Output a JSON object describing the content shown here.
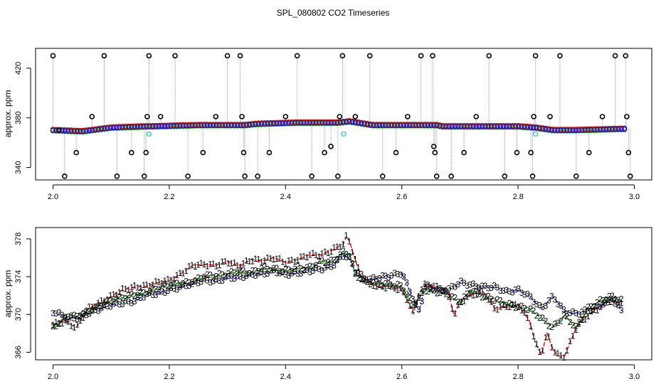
{
  "title": "SPL_080802  CO2 Timeseries",
  "colors": {
    "series1": "#dd0000",
    "series2": "#00aa00",
    "series3": "#0000cc",
    "flag": "#33cccc",
    "raw": "#000000",
    "frame": "#000000"
  },
  "chart_data": [
    {
      "type": "scatter",
      "name": "top-panel",
      "title": "SPL_080802  CO2 Timeseries",
      "xlabel": "",
      "ylabel": "approx. ppm",
      "xlim": [
        1.97,
        3.03
      ],
      "ylim": [
        330,
        436
      ],
      "x_ticks": [
        2.0,
        2.2,
        2.4,
        2.6,
        2.8,
        3.0
      ],
      "x_tick_labels": [
        "2.0",
        "2.2",
        "2.4",
        "2.6",
        "2.8",
        "3.0"
      ],
      "y_ticks": [
        340,
        380,
        420
      ],
      "y_tick_labels": [
        "340",
        "380",
        "420"
      ],
      "grid": false,
      "baseline": [
        [
          2.0,
          370
        ],
        [
          2.05,
          369
        ],
        [
          2.1,
          372
        ],
        [
          2.16,
          373
        ],
        [
          2.17,
          373
        ],
        [
          2.25,
          374
        ],
        [
          2.33,
          374
        ],
        [
          2.35,
          375
        ],
        [
          2.42,
          376
        ],
        [
          2.49,
          376
        ],
        [
          2.51,
          377
        ],
        [
          2.55,
          374
        ],
        [
          2.6,
          374
        ],
        [
          2.66,
          374
        ],
        [
          2.67,
          373
        ],
        [
          2.8,
          373
        ],
        [
          2.83,
          372
        ],
        [
          2.86,
          370
        ],
        [
          2.9,
          370
        ],
        [
          2.98,
          371
        ]
      ],
      "raw_points": [
        [
          2.0,
          430
        ],
        [
          2.01,
          370
        ],
        [
          2.02,
          333
        ],
        [
          2.04,
          352
        ],
        [
          2.067,
          381
        ],
        [
          2.088,
          430
        ],
        [
          2.11,
          333
        ],
        [
          2.135,
          352
        ],
        [
          2.157,
          333
        ],
        [
          2.16,
          352
        ],
        [
          2.162,
          381
        ],
        [
          2.165,
          430
        ],
        [
          2.185,
          381
        ],
        [
          2.21,
          430
        ],
        [
          2.232,
          333
        ],
        [
          2.258,
          352
        ],
        [
          2.28,
          381
        ],
        [
          2.3,
          430
        ],
        [
          2.322,
          430
        ],
        [
          2.325,
          381
        ],
        [
          2.328,
          352
        ],
        [
          2.33,
          333
        ],
        [
          2.352,
          333
        ],
        [
          2.372,
          352
        ],
        [
          2.4,
          381
        ],
        [
          2.42,
          430
        ],
        [
          2.445,
          333
        ],
        [
          2.467,
          352
        ],
        [
          2.478,
          357
        ],
        [
          2.49,
          333
        ],
        [
          2.493,
          381
        ],
        [
          2.498,
          430
        ],
        [
          2.52,
          381
        ],
        [
          2.545,
          430
        ],
        [
          2.567,
          333
        ],
        [
          2.59,
          352
        ],
        [
          2.61,
          381
        ],
        [
          2.633,
          430
        ],
        [
          2.653,
          430
        ],
        [
          2.655,
          357
        ],
        [
          2.657,
          352
        ],
        [
          2.66,
          333
        ],
        [
          2.685,
          333
        ],
        [
          2.707,
          352
        ],
        [
          2.728,
          381
        ],
        [
          2.75,
          430
        ],
        [
          2.777,
          333
        ],
        [
          2.798,
          352
        ],
        [
          2.822,
          352
        ],
        [
          2.825,
          333
        ],
        [
          2.827,
          381
        ],
        [
          2.83,
          430
        ],
        [
          2.855,
          381
        ],
        [
          2.872,
          430
        ],
        [
          2.9,
          333
        ],
        [
          2.922,
          352
        ],
        [
          2.945,
          381
        ],
        [
          2.967,
          430
        ],
        [
          2.985,
          430
        ],
        [
          2.987,
          381
        ],
        [
          2.99,
          352
        ],
        [
          2.993,
          333
        ]
      ],
      "flag_points": [
        [
          2.165,
          367
        ],
        [
          2.5,
          367
        ],
        [
          2.83,
          367
        ]
      ]
    },
    {
      "type": "line",
      "name": "bottom-panel",
      "title": "",
      "xlabel": "",
      "ylabel": "approx. ppm",
      "xlim": [
        1.97,
        3.03
      ],
      "ylim": [
        365.2,
        379.2
      ],
      "x_ticks": [
        2.0,
        2.2,
        2.4,
        2.6,
        2.8,
        3.0
      ],
      "x_tick_labels": [
        "2.0",
        "2.2",
        "2.4",
        "2.6",
        "2.8",
        "3.0"
      ],
      "y_ticks": [
        366,
        370,
        374,
        378
      ],
      "y_tick_labels": [
        "366",
        "370",
        "374",
        "378"
      ],
      "grid": false,
      "series": [
        {
          "name": "1",
          "symbol": "1",
          "points": [
            [
              2.0,
              368.9
            ],
            [
              2.02,
              369.3
            ],
            [
              2.04,
              368.6
            ],
            [
              2.06,
              370.6
            ],
            [
              2.08,
              371.2
            ],
            [
              2.1,
              371.9
            ],
            [
              2.12,
              372.6
            ],
            [
              2.14,
              372.9
            ],
            [
              2.16,
              373.0
            ],
            [
              2.18,
              373.4
            ],
            [
              2.2,
              373.6
            ],
            [
              2.22,
              374.3
            ],
            [
              2.24,
              375.2
            ],
            [
              2.26,
              375.3
            ],
            [
              2.28,
              375.2
            ],
            [
              2.3,
              375.6
            ],
            [
              2.32,
              375.1
            ],
            [
              2.34,
              375.8
            ],
            [
              2.36,
              375.7
            ],
            [
              2.38,
              376.0
            ],
            [
              2.4,
              375.5
            ],
            [
              2.42,
              375.8
            ],
            [
              2.44,
              376.3
            ],
            [
              2.46,
              376.3
            ],
            [
              2.48,
              376.8
            ],
            [
              2.5,
              377.5
            ],
            [
              2.505,
              378.3
            ],
            [
              2.51,
              377.7
            ],
            [
              2.52,
              375.8
            ],
            [
              2.53,
              373.9
            ],
            [
              2.54,
              373.6
            ],
            [
              2.56,
              372.9
            ],
            [
              2.58,
              373.0
            ],
            [
              2.6,
              372.6
            ],
            [
              2.61,
              371.5
            ],
            [
              2.62,
              370.1
            ],
            [
              2.63,
              372.3
            ],
            [
              2.64,
              373.1
            ],
            [
              2.66,
              372.9
            ],
            [
              2.68,
              372.3
            ],
            [
              2.69,
              369.9
            ],
            [
              2.7,
              371.3
            ],
            [
              2.72,
              372.1
            ],
            [
              2.74,
              372.4
            ],
            [
              2.76,
              370.6
            ],
            [
              2.78,
              370.9
            ],
            [
              2.8,
              371.0
            ],
            [
              2.82,
              369.3
            ],
            [
              2.83,
              366.9
            ],
            [
              2.84,
              365.8
            ],
            [
              2.85,
              368.0
            ],
            [
              2.86,
              366.3
            ],
            [
              2.87,
              365.6
            ],
            [
              2.88,
              365.6
            ],
            [
              2.9,
              368.6
            ],
            [
              2.92,
              369.9
            ],
            [
              2.94,
              370.8
            ],
            [
              2.96,
              371.6
            ],
            [
              2.98,
              371.3
            ]
          ]
        },
        {
          "name": "2",
          "symbol": "2",
          "points": [
            [
              2.0,
              368.6
            ],
            [
              2.02,
              369.6
            ],
            [
              2.04,
              369.8
            ],
            [
              2.06,
              370.3
            ],
            [
              2.08,
              370.9
            ],
            [
              2.1,
              371.5
            ],
            [
              2.12,
              371.8
            ],
            [
              2.14,
              372.1
            ],
            [
              2.16,
              372.3
            ],
            [
              2.18,
              372.8
            ],
            [
              2.2,
              373.1
            ],
            [
              2.22,
              373.3
            ],
            [
              2.24,
              373.4
            ],
            [
              2.26,
              374.1
            ],
            [
              2.28,
              374.1
            ],
            [
              2.3,
              374.3
            ],
            [
              2.32,
              374.6
            ],
            [
              2.34,
              374.4
            ],
            [
              2.36,
              374.9
            ],
            [
              2.38,
              374.8
            ],
            [
              2.4,
              374.6
            ],
            [
              2.42,
              374.9
            ],
            [
              2.44,
              374.9
            ],
            [
              2.46,
              375.6
            ],
            [
              2.48,
              375.6
            ],
            [
              2.5,
              376.6
            ],
            [
              2.51,
              376.3
            ],
            [
              2.52,
              374.2
            ],
            [
              2.54,
              373.4
            ],
            [
              2.56,
              373.3
            ],
            [
              2.58,
              373.1
            ],
            [
              2.6,
              373.0
            ],
            [
              2.62,
              370.9
            ],
            [
              2.64,
              372.6
            ],
            [
              2.66,
              372.4
            ],
            [
              2.68,
              372.1
            ],
            [
              2.7,
              371.3
            ],
            [
              2.72,
              372.6
            ],
            [
              2.74,
              371.9
            ],
            [
              2.76,
              371.6
            ],
            [
              2.78,
              371.1
            ],
            [
              2.8,
              370.8
            ],
            [
              2.82,
              370.6
            ],
            [
              2.84,
              369.6
            ],
            [
              2.86,
              368.6
            ],
            [
              2.88,
              369.9
            ],
            [
              2.9,
              368.6
            ],
            [
              2.92,
              370.6
            ],
            [
              2.94,
              371.4
            ],
            [
              2.96,
              371.9
            ],
            [
              2.98,
              371.4
            ]
          ]
        },
        {
          "name": "3",
          "symbol": "3",
          "points": [
            [
              2.0,
              370.3
            ],
            [
              2.02,
              369.8
            ],
            [
              2.04,
              369.6
            ],
            [
              2.06,
              370.1
            ],
            [
              2.08,
              370.6
            ],
            [
              2.1,
              371.0
            ],
            [
              2.12,
              371.2
            ],
            [
              2.14,
              371.4
            ],
            [
              2.16,
              372.1
            ],
            [
              2.18,
              372.2
            ],
            [
              2.2,
              372.6
            ],
            [
              2.22,
              372.9
            ],
            [
              2.24,
              373.3
            ],
            [
              2.26,
              373.6
            ],
            [
              2.28,
              373.5
            ],
            [
              2.3,
              373.9
            ],
            [
              2.32,
              373.9
            ],
            [
              2.34,
              374.2
            ],
            [
              2.36,
              374.3
            ],
            [
              2.38,
              374.6
            ],
            [
              2.4,
              374.2
            ],
            [
              2.42,
              374.4
            ],
            [
              2.44,
              374.6
            ],
            [
              2.46,
              374.8
            ],
            [
              2.48,
              375.1
            ],
            [
              2.5,
              376.3
            ],
            [
              2.51,
              375.9
            ],
            [
              2.52,
              374.6
            ],
            [
              2.54,
              373.6
            ],
            [
              2.56,
              373.9
            ],
            [
              2.58,
              374.1
            ],
            [
              2.6,
              374.4
            ],
            [
              2.62,
              371.6
            ],
            [
              2.63,
              370.3
            ],
            [
              2.64,
              373.1
            ],
            [
              2.66,
              372.6
            ],
            [
              2.68,
              372.6
            ],
            [
              2.7,
              373.4
            ],
            [
              2.72,
              373.1
            ],
            [
              2.74,
              372.9
            ],
            [
              2.76,
              372.9
            ],
            [
              2.78,
              372.4
            ],
            [
              2.8,
              372.6
            ],
            [
              2.82,
              371.9
            ],
            [
              2.84,
              370.6
            ],
            [
              2.86,
              371.9
            ],
            [
              2.88,
              370.3
            ],
            [
              2.9,
              370.1
            ],
            [
              2.92,
              370.4
            ],
            [
              2.94,
              370.9
            ],
            [
              2.96,
              371.6
            ],
            [
              2.98,
              370.3
            ]
          ]
        }
      ]
    }
  ]
}
